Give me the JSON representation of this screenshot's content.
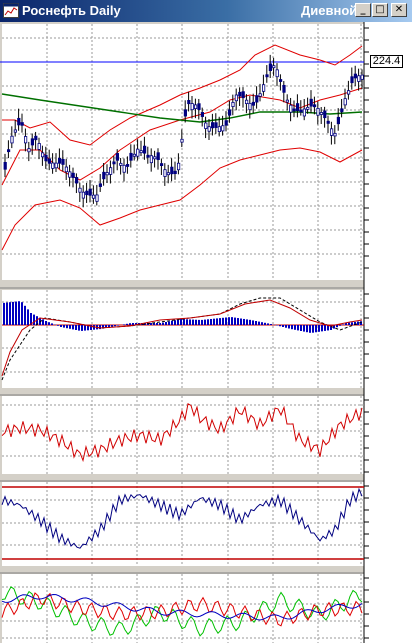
{
  "window": {
    "title": "Роснефть Daily",
    "title_right": "Диевной",
    "buttons": {
      "minimize": "_",
      "maximize": "□",
      "close": "✕"
    }
  },
  "price_label": "224.4",
  "colors": {
    "title_bar": "#0a246a",
    "plot_bg": "#ffffff",
    "price_line": "#0000ff",
    "bollinger": "#e00000",
    "moving_average": "#007000",
    "candles": "#000080",
    "histogram": "#0000c0",
    "signal": "#c00000",
    "oscillator_red": "#d00000",
    "oscillator_blue": "#000080",
    "plus_di": "#00c000",
    "minus_di": "#e00000",
    "adx": "#0000c0"
  },
  "icons": [
    "chart-app-icon",
    "minimize-icon",
    "maximize-icon",
    "close-icon"
  ]
}
